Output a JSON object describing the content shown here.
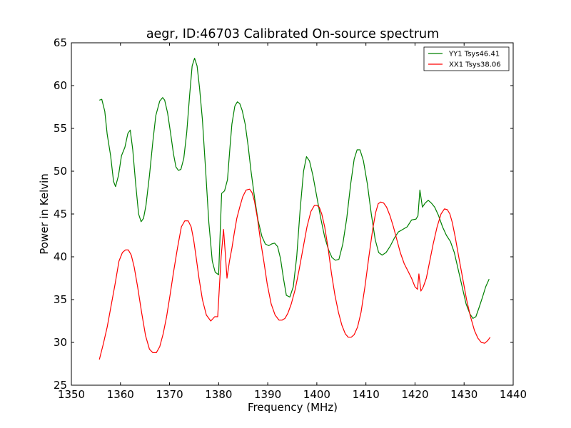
{
  "chart_data": {
    "type": "line",
    "title": "aegr, ID:46703 Calibrated On-source spectrum",
    "xlabel": "Frequency (MHz)",
    "ylabel": "Power in Kelvin",
    "xlim": [
      1350,
      1440
    ],
    "ylim": [
      25,
      65
    ],
    "xticks": [
      1350,
      1360,
      1370,
      1380,
      1390,
      1400,
      1410,
      1420,
      1430,
      1440
    ],
    "yticks": [
      25,
      30,
      35,
      40,
      45,
      50,
      55,
      60,
      65
    ],
    "grid": false,
    "legend_position": "top-right",
    "series": [
      {
        "name": "YY1 Tsys46.41",
        "color": "#008000",
        "x": [
          1355.7,
          1356.2,
          1356.8,
          1357.3,
          1358.0,
          1358.6,
          1359.0,
          1359.6,
          1360.2,
          1360.9,
          1361.5,
          1362.0,
          1362.5,
          1363.1,
          1363.7,
          1364.2,
          1364.7,
          1365.2,
          1365.9,
          1366.6,
          1367.2,
          1368.0,
          1368.6,
          1369.0,
          1369.6,
          1370.2,
          1370.8,
          1371.3,
          1371.8,
          1372.3,
          1372.9,
          1373.5,
          1374.1,
          1374.6,
          1375.1,
          1375.6,
          1376.1,
          1376.7,
          1377.3,
          1378.0,
          1378.7,
          1379.3,
          1380.0,
          1380.6,
          1381.2,
          1381.8,
          1382.3,
          1382.7,
          1383.3,
          1383.8,
          1384.3,
          1384.8,
          1385.4,
          1386.0,
          1386.6,
          1387.3,
          1388.0,
          1388.8,
          1389.5,
          1390.2,
          1390.8,
          1391.4,
          1392.0,
          1392.6,
          1393.2,
          1393.8,
          1394.5,
          1395.2,
          1395.9,
          1396.6,
          1397.3,
          1397.9,
          1398.5,
          1399.2,
          1400.0,
          1400.8,
          1401.6,
          1402.4,
          1403.1,
          1403.8,
          1404.5,
          1405.3,
          1406.1,
          1406.9,
          1407.6,
          1408.2,
          1408.8,
          1409.5,
          1410.3,
          1411.1,
          1411.9,
          1412.6,
          1413.3,
          1414.1,
          1414.9,
          1415.8,
          1416.6,
          1417.5,
          1418.4,
          1419.3,
          1420.2,
          1420.6,
          1421.0,
          1421.5,
          1422.1,
          1422.7,
          1423.3,
          1424.0,
          1424.8,
          1425.6,
          1426.4,
          1427.2,
          1428.0,
          1428.8,
          1429.6,
          1430.4,
          1431.2,
          1431.8,
          1432.4,
          1433.0,
          1433.7,
          1434.4,
          1435.1
        ],
        "y": [
          58.3,
          58.4,
          57.0,
          54.3,
          51.8,
          48.8,
          48.2,
          49.5,
          51.8,
          52.8,
          54.4,
          54.8,
          52.5,
          48.5,
          45.0,
          44.1,
          44.5,
          46.0,
          49.5,
          53.5,
          56.5,
          58.2,
          58.6,
          58.3,
          56.8,
          54.5,
          52.0,
          50.5,
          50.1,
          50.2,
          51.5,
          54.5,
          59.0,
          62.3,
          63.2,
          62.3,
          59.8,
          56.0,
          50.5,
          44.0,
          39.5,
          38.2,
          37.9,
          47.4,
          47.7,
          49.0,
          52.8,
          55.5,
          57.6,
          58.1,
          57.9,
          57.1,
          55.5,
          53.0,
          50.0,
          47.0,
          44.3,
          42.4,
          41.5,
          41.3,
          41.5,
          41.6,
          41.2,
          39.8,
          37.5,
          35.5,
          35.3,
          36.5,
          40.0,
          45.5,
          50.0,
          51.7,
          51.2,
          49.5,
          47.0,
          44.5,
          42.3,
          40.8,
          39.9,
          39.6,
          39.7,
          41.5,
          44.5,
          48.5,
          51.4,
          52.5,
          52.5,
          51.2,
          48.5,
          45.0,
          42.0,
          40.5,
          40.2,
          40.5,
          41.2,
          42.2,
          42.9,
          43.2,
          43.5,
          44.3,
          44.4,
          44.8,
          47.8,
          45.8,
          46.3,
          46.6,
          46.3,
          45.8,
          44.8,
          43.5,
          42.5,
          41.8,
          40.5,
          38.5,
          36.5,
          34.5,
          33.3,
          32.8,
          33.0,
          34.0,
          35.2,
          36.5,
          37.4
        ]
      },
      {
        "name": "XX1 Tsys38.06",
        "color": "#ff0000",
        "x": [
          1355.7,
          1356.5,
          1357.3,
          1358.1,
          1358.9,
          1359.7,
          1360.4,
          1361.0,
          1361.6,
          1362.2,
          1362.8,
          1363.5,
          1364.3,
          1365.1,
          1365.9,
          1366.6,
          1367.3,
          1368.0,
          1368.7,
          1369.4,
          1370.1,
          1370.8,
          1371.6,
          1372.4,
          1373.1,
          1373.8,
          1374.4,
          1374.9,
          1375.4,
          1376.0,
          1376.7,
          1377.5,
          1378.4,
          1379.2,
          1379.8,
          1380.5,
          1381.0,
          1381.4,
          1381.7,
          1382.2,
          1382.7,
          1383.2,
          1383.7,
          1384.3,
          1384.9,
          1385.6,
          1386.3,
          1386.8,
          1387.3,
          1387.9,
          1388.5,
          1389.2,
          1389.9,
          1390.7,
          1391.5,
          1392.3,
          1392.9,
          1393.5,
          1394.1,
          1394.8,
          1395.6,
          1396.4,
          1397.2,
          1398.0,
          1398.8,
          1399.5,
          1400.0,
          1400.5,
          1401.0,
          1401.6,
          1402.3,
          1403.0,
          1403.7,
          1404.4,
          1405.1,
          1405.8,
          1406.4,
          1407.0,
          1407.6,
          1408.3,
          1409.0,
          1409.8,
          1410.6,
          1411.4,
          1412.0,
          1412.5,
          1413.0,
          1413.6,
          1414.2,
          1414.9,
          1415.6,
          1416.3,
          1417.0,
          1417.8,
          1418.6,
          1419.3,
          1420.0,
          1420.5,
          1420.8,
          1421.2,
          1421.7,
          1422.3,
          1423.0,
          1423.7,
          1424.5,
          1425.3,
          1426.0,
          1426.6,
          1427.1,
          1427.6,
          1428.2,
          1428.9,
          1429.7,
          1430.5,
          1431.3,
          1432.1,
          1432.8,
          1433.5,
          1434.2,
          1434.8,
          1435.3
        ],
        "y": [
          28.0,
          29.8,
          31.8,
          34.3,
          36.8,
          39.5,
          40.5,
          40.8,
          40.8,
          40.2,
          38.8,
          36.5,
          33.5,
          30.8,
          29.2,
          28.8,
          28.8,
          29.5,
          31.0,
          33.0,
          35.5,
          38.2,
          41.0,
          43.5,
          44.2,
          44.2,
          43.5,
          42.0,
          40.0,
          37.5,
          35.0,
          33.2,
          32.5,
          33.0,
          33.0,
          40.0,
          43.2,
          40.0,
          37.5,
          39.5,
          41.0,
          42.8,
          44.5,
          45.8,
          47.0,
          47.8,
          47.9,
          47.5,
          46.5,
          44.5,
          42.0,
          39.5,
          36.8,
          34.5,
          33.2,
          32.6,
          32.6,
          32.8,
          33.4,
          34.5,
          36.2,
          38.5,
          41.0,
          43.5,
          45.3,
          46.0,
          46.0,
          45.8,
          45.0,
          43.5,
          41.0,
          38.0,
          35.5,
          33.5,
          32.0,
          31.0,
          30.6,
          30.6,
          30.9,
          31.8,
          33.5,
          36.5,
          40.0,
          43.3,
          45.2,
          46.2,
          46.4,
          46.3,
          45.8,
          44.8,
          43.5,
          42.0,
          40.5,
          39.2,
          38.3,
          37.5,
          36.5,
          36.2,
          38.0,
          36.0,
          36.5,
          37.5,
          39.5,
          41.5,
          43.5,
          45.0,
          45.6,
          45.5,
          45.0,
          44.0,
          42.3,
          40.0,
          37.5,
          35.0,
          33.0,
          31.4,
          30.5,
          30.0,
          29.9,
          30.2,
          30.6
        ]
      }
    ]
  }
}
